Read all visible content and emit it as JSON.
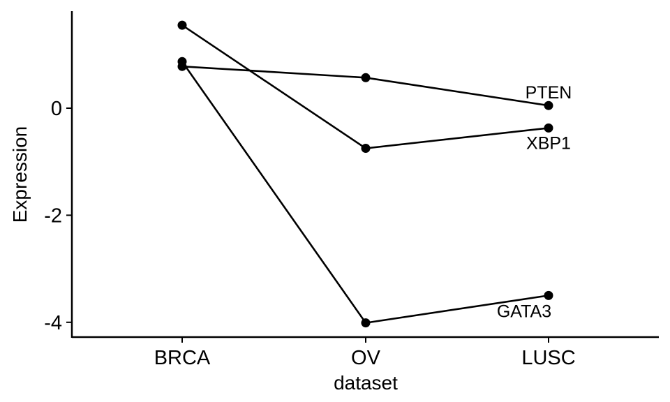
{
  "chart_data": {
    "type": "line",
    "categories": [
      "BRCA",
      "OV",
      "LUSC"
    ],
    "xlabel": "dataset",
    "ylabel": "Expression",
    "ylim": [
      -4.3,
      1.8
    ],
    "yticks": [
      -4,
      -2,
      0
    ],
    "ytick_labels": [
      "-4",
      "-2",
      "0"
    ],
    "grid": false,
    "legend": "none",
    "line_color": "#000000",
    "series": [
      {
        "name": "PTEN",
        "values": [
          0.78,
          0.57,
          0.05
        ]
      },
      {
        "name": "XBP1",
        "values": [
          1.55,
          -0.75,
          -0.37
        ]
      },
      {
        "name": "GATA3",
        "values": [
          0.87,
          -4.01,
          -3.5
        ]
      }
    ]
  }
}
